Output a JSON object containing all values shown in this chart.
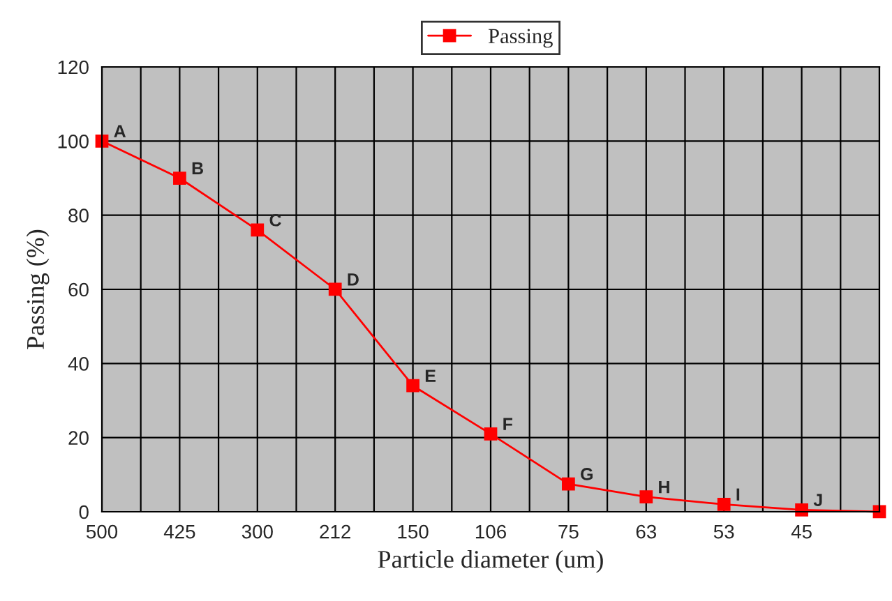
{
  "chart_data": {
    "type": "line",
    "xlabel": "Particle diameter (um)",
    "ylabel": "Passing (%)",
    "categories": [
      "500",
      "425",
      "300",
      "212",
      "150",
      "106",
      "75",
      "63",
      "53",
      "45",
      null
    ],
    "series": [
      {
        "name": "Passing",
        "color": "#ff0000",
        "values": [
          100,
          90,
          76,
          60,
          34,
          21,
          7.5,
          4,
          2,
          0.5,
          0
        ]
      }
    ],
    "ylim": [
      0,
      120
    ],
    "yticks": [
      0,
      20,
      40,
      60,
      80,
      100,
      120
    ],
    "grid": true,
    "legend": "top",
    "marker": "square",
    "line_style": "solid",
    "annotations": [
      {
        "text": "A",
        "x": "500",
        "y": 100
      },
      {
        "text": "B",
        "x": "425",
        "y": 90
      },
      {
        "text": "C",
        "x": "300",
        "y": 76
      },
      {
        "text": "D",
        "x": "212",
        "y": 60
      },
      {
        "text": "E",
        "x": "150",
        "y": 34
      },
      {
        "text": "F",
        "x": "106",
        "y": 21
      },
      {
        "text": "G",
        "x": "75",
        "y": 7.5
      },
      {
        "text": "H",
        "x": "63",
        "y": 4
      },
      {
        "text": "I",
        "x": "53",
        "y": 2
      },
      {
        "text": "J",
        "x": "45",
        "y": 0.5
      }
    ]
  }
}
